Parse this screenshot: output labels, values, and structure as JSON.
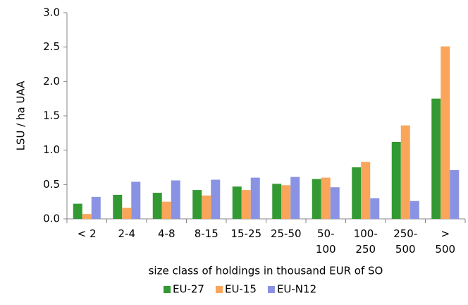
{
  "chart_data": {
    "type": "bar",
    "y_label": "LSU / ha UAA",
    "x_label": "size class of holdings in thousand EUR of SO",
    "categories": [
      "< 2",
      "2-4",
      "4-8",
      "8-15",
      "15-25",
      "25-50",
      "50-\n100",
      "100-\n250",
      "250-\n500",
      ">\n500"
    ],
    "series": [
      {
        "name": "EU-27",
        "color": "#339933",
        "values": [
          0.22,
          0.35,
          0.38,
          0.42,
          0.47,
          0.51,
          0.58,
          0.75,
          1.12,
          1.75
        ]
      },
      {
        "name": "EU-15",
        "color": "#f9a65a",
        "values": [
          0.07,
          0.16,
          0.25,
          0.34,
          0.42,
          0.49,
          0.6,
          0.83,
          1.36,
          2.51
        ]
      },
      {
        "name": "EU-N12",
        "color": "#8a93e3",
        "values": [
          0.32,
          0.54,
          0.56,
          0.57,
          0.6,
          0.61,
          0.46,
          0.3,
          0.26,
          0.71
        ]
      }
    ],
    "ylim": [
      0,
      3
    ],
    "yticks": [
      {
        "value": 0,
        "label": "0.0"
      },
      {
        "value": 0.5,
        "label": "0.5"
      },
      {
        "value": 1,
        "label": "1.0"
      },
      {
        "value": 1.5,
        "label": "1.5"
      },
      {
        "value": 2,
        "label": "2.0"
      },
      {
        "value": 2.5,
        "label": "2.5"
      },
      {
        "value": 3,
        "label": "3.0"
      }
    ],
    "grid": false,
    "legend": "bottom"
  }
}
